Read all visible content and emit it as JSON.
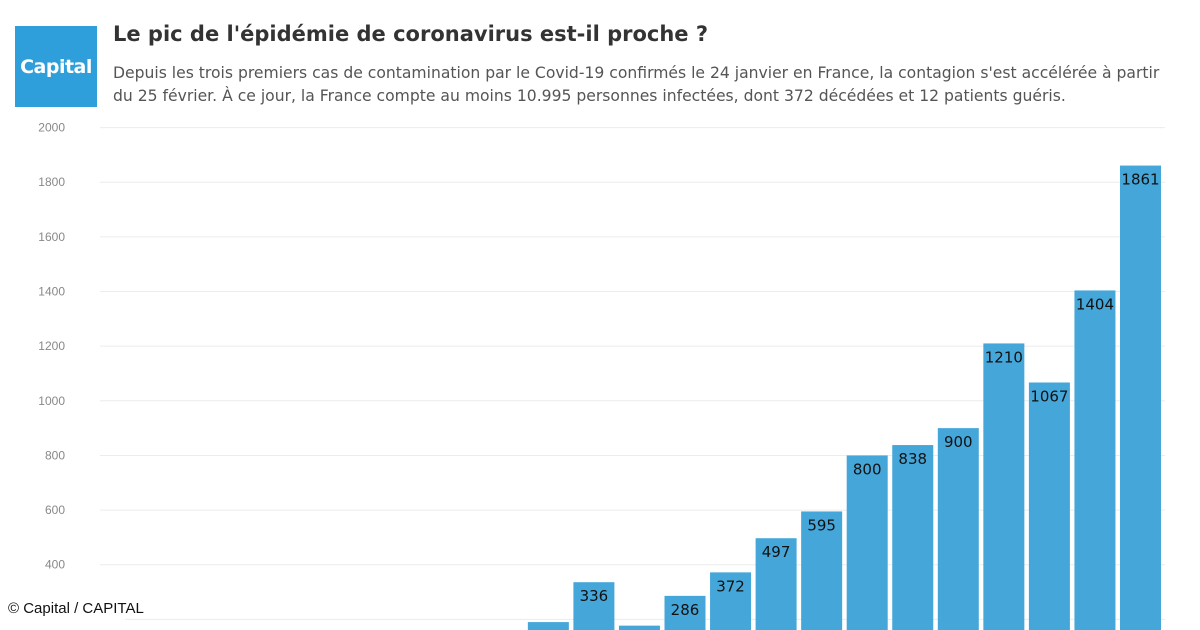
{
  "logo": {
    "text": "Capital",
    "color": "#2f9fdb"
  },
  "header": {
    "title": "Le pic de l'épidémie de coronavirus est-il proche ?",
    "subtitle": "Depuis les trois premiers cas de contamination par le Covid-19 confirmés le 24 janvier en France, la contagion s'est accélérée à partir du 25 février. À ce jour, la France compte au moins 10.995 personnes infectées, dont 372 décédées et 12 patients guéris."
  },
  "credit": "© Capital / CAPITAL",
  "chart_data": {
    "type": "bar",
    "values": [
      190,
      336,
      177,
      286,
      372,
      497,
      595,
      800,
      838,
      900,
      1210,
      1067,
      1404,
      1861
    ],
    "yticks": [
      "400",
      "600",
      "800",
      "1000",
      "1200",
      "1400",
      "1600",
      "1800",
      "2000"
    ],
    "ylim_visible": [
      200,
      2000
    ],
    "grid": true,
    "bar_color": "#45a6d9"
  }
}
